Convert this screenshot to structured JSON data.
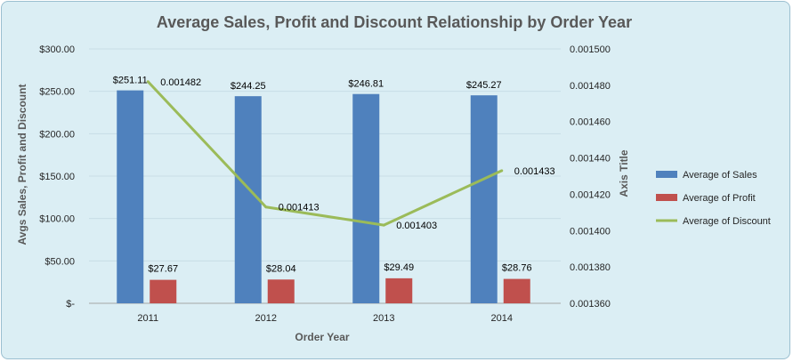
{
  "chart_data": {
    "type": "bar",
    "title": "Average Sales, Profit and Discount Relationship by Order Year",
    "xlabel": "Order Year",
    "ylabel": "Avgs Sales, Profit and Discount",
    "y2label": "Axis Title",
    "categories": [
      "2011",
      "2012",
      "2013",
      "2014"
    ],
    "ylim": [
      0,
      300
    ],
    "y2lim": [
      0.00136,
      0.0015
    ],
    "y_ticks": [
      "$-",
      "$50.00",
      "$100.00",
      "$150.00",
      "$200.00",
      "$250.00",
      "$300.00"
    ],
    "y2_ticks": [
      "0.001360",
      "0.001380",
      "0.001400",
      "0.001420",
      "0.001440",
      "0.001460",
      "0.001480",
      "0.001500"
    ],
    "grid": true,
    "legend_position": "right",
    "series": [
      {
        "name": "Average of Sales",
        "kind": "bar",
        "axis": "primary",
        "color": "#4f81bd",
        "values": [
          251.11,
          244.25,
          246.81,
          245.27
        ],
        "labels": [
          "$251.11",
          "$244.25",
          "$246.81",
          "$245.27"
        ]
      },
      {
        "name": "Average of Profit",
        "kind": "bar",
        "axis": "primary",
        "color": "#c0504d",
        "values": [
          27.67,
          28.04,
          29.49,
          28.76
        ],
        "labels": [
          "$27.67",
          "$28.04",
          "$29.49",
          "$28.76"
        ]
      },
      {
        "name": "Average of Discount",
        "kind": "line",
        "axis": "secondary",
        "color": "#9bbb59",
        "values": [
          0.001482,
          0.001413,
          0.001403,
          0.001433
        ],
        "labels": [
          "0.001482",
          "0.001413",
          "0.001403",
          "0.001433"
        ]
      }
    ]
  }
}
